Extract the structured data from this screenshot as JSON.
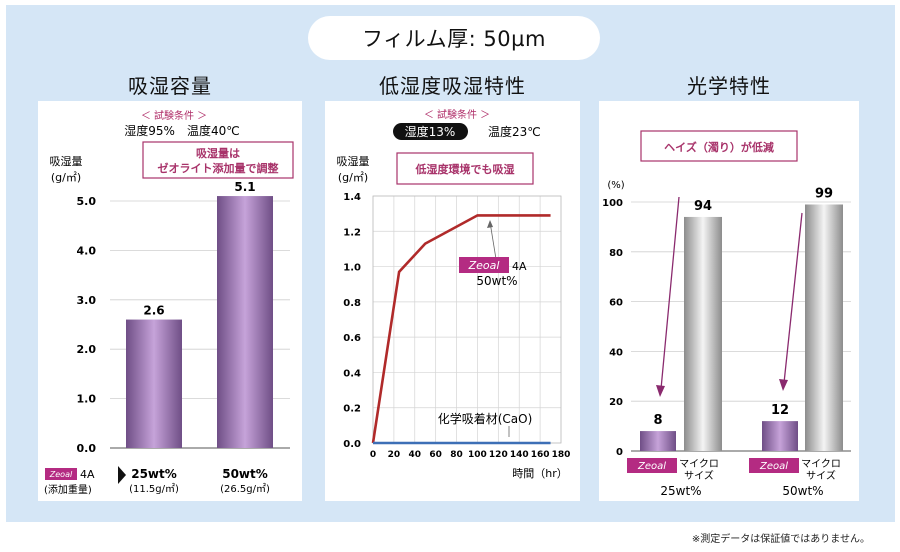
{
  "main_title": "フィルム厚: 50µm",
  "footnote": "※測定データは保証値ではありません。",
  "brand": "Zeoal",
  "chart_data": [
    {
      "type": "bar",
      "title": "吸湿容量",
      "condition_header": "＜ 試験条件 ＞",
      "conditions": "湿度95%　温度40℃",
      "callout": [
        "吸湿量は",
        "ゼオライト添加量で調整"
      ],
      "ylabel": [
        "吸湿量",
        "(g/㎡)"
      ],
      "ylim": [
        0,
        5.0
      ],
      "yticks": [
        "5.0",
        "4.0",
        "3.0",
        "2.0",
        "1.0",
        "0.0"
      ],
      "categories": [
        "25wt%",
        "50wt%"
      ],
      "category_sub": [
        "(11.5g/㎡)",
        "(26.5g/㎡)"
      ],
      "values": [
        2.6,
        5.1
      ],
      "value_labels": [
        "2.6",
        "5.1"
      ],
      "legend_suffix": "4A",
      "legend_note": "(添加重量)",
      "bar_color": "#a07ab8"
    },
    {
      "type": "line",
      "title": "低湿度吸湿特性",
      "condition_header": "＜ 試験条件 ＞",
      "humidity_badge": "湿度13%",
      "temperature": "温度23℃",
      "callout": "低湿度環境でも吸湿",
      "ylabel": [
        "吸湿量",
        "(g/㎡)"
      ],
      "xlabel": "時間（hr）",
      "xlim": [
        0,
        180
      ],
      "ylim": [
        0,
        1.4
      ],
      "xticks": [
        "0",
        "20",
        "40",
        "60",
        "80",
        "100",
        "120",
        "140",
        "160",
        "180"
      ],
      "yticks": [
        "1.4",
        "1.2",
        "1.0",
        "0.8",
        "0.6",
        "0.4",
        "0.2",
        "0.0"
      ],
      "series": [
        {
          "name": "4A 50wt%",
          "color": "#b02a2a",
          "x": [
            0,
            25,
            50,
            100,
            170
          ],
          "y": [
            0,
            0.97,
            1.13,
            1.29,
            1.29
          ]
        },
        {
          "name": "化学吸着材(CaO)",
          "color": "#3d6fb6",
          "x": [
            0,
            170
          ],
          "y": [
            0,
            0
          ]
        }
      ],
      "label_zeoal_suffix": "4A",
      "label_zeoal_sub": "50wt%",
      "label_cao": "化学吸着材(CaO)"
    },
    {
      "type": "bar",
      "title": "光学特性",
      "callout": "ヘイズ（濁り）が低減",
      "ylabel": "(%)",
      "ylim": [
        0,
        100
      ],
      "yticks": [
        "100",
        "80",
        "60",
        "40",
        "20",
        "0"
      ],
      "groups": [
        "25wt%",
        "50wt%"
      ],
      "series": [
        {
          "name": "Zeoal",
          "values": [
            8,
            12
          ],
          "value_labels": [
            "8",
            "12"
          ],
          "color": "#a07ab8"
        },
        {
          "name": "マイクロサイズ",
          "values": [
            94,
            99
          ],
          "value_labels": [
            "94",
            "99"
          ],
          "color": "#b8b8b8"
        }
      ],
      "micro_label": [
        "マイクロ",
        "サイズ"
      ]
    }
  ]
}
